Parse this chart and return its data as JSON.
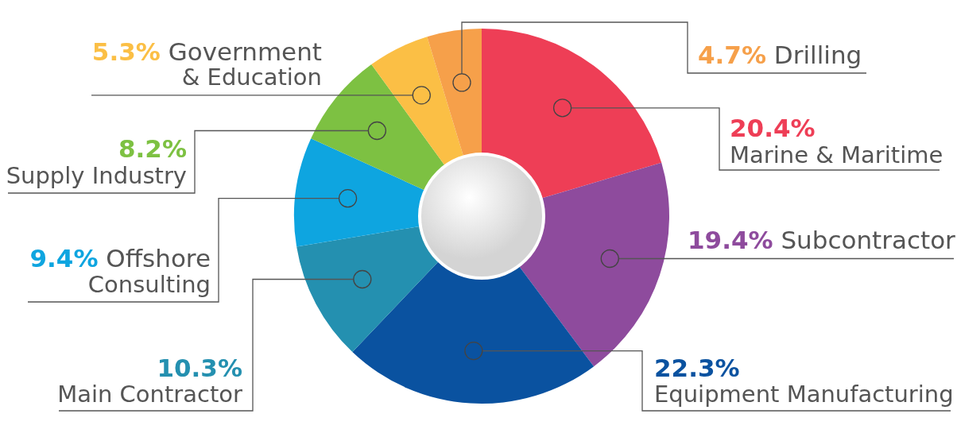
{
  "chart_data": {
    "type": "donut",
    "categories": [
      "Marine & Maritime",
      "Subcontractor",
      "Equipment Manufacturing",
      "Main Contractor",
      "Offshore Consulting",
      "Supply Industry",
      "Government & Education",
      "Drilling"
    ],
    "values": [
      20.4,
      19.4,
      22.3,
      10.3,
      9.4,
      8.2,
      5.3,
      4.7
    ],
    "value_labels": [
      "20.4%",
      "19.4%",
      "22.3%",
      "10.3%",
      "9.4%",
      "8.2%",
      "5.3%",
      "4.7%"
    ],
    "colors": [
      "#ee3e56",
      "#8e4b9d",
      "#0a52a0",
      "#2490b0",
      "#0ea5e0",
      "#7dc142",
      "#fbbf45",
      "#f6a04a"
    ]
  }
}
